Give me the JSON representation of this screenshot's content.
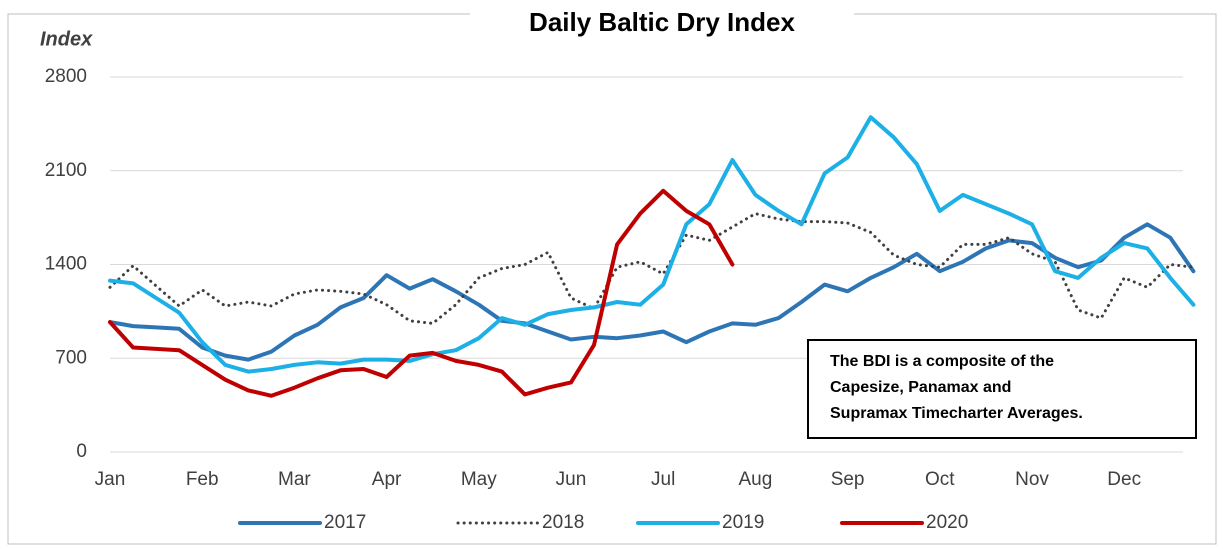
{
  "chart_data": {
    "type": "line",
    "title": "Daily Baltic Dry Index",
    "y_label": "Index",
    "annotation": [
      "The BDI is a composite of the",
      "Capesize, Panamax and",
      "Supramax Timecharter Averages."
    ],
    "x": [
      0,
      0.25,
      0.5,
      0.75,
      1,
      1.25,
      1.5,
      1.75,
      2,
      2.25,
      2.5,
      2.75,
      3,
      3.25,
      3.5,
      3.75,
      4,
      4.25,
      4.5,
      4.75,
      5,
      5.25,
      5.5,
      5.75,
      6,
      6.25,
      6.5,
      6.75,
      7,
      7.25,
      7.5,
      7.75,
      8,
      8.25,
      8.5,
      8.75,
      9,
      9.25,
      9.5,
      9.75,
      10,
      10.25,
      10.5,
      10.75,
      11,
      11.25,
      11.5,
      11.75
    ],
    "xlim": [
      0,
      11.75
    ],
    "xticks": [
      {
        "value": 0,
        "label": "Jan"
      },
      {
        "value": 1,
        "label": "Feb"
      },
      {
        "value": 2,
        "label": "Mar"
      },
      {
        "value": 3,
        "label": "Apr"
      },
      {
        "value": 4,
        "label": "May"
      },
      {
        "value": 5,
        "label": "Jun"
      },
      {
        "value": 6,
        "label": "Jul"
      },
      {
        "value": 7,
        "label": "Aug"
      },
      {
        "value": 8,
        "label": "Sep"
      },
      {
        "value": 9,
        "label": "Oct"
      },
      {
        "value": 10,
        "label": "Nov"
      },
      {
        "value": 11,
        "label": "Dec"
      }
    ],
    "ylim": [
      0,
      2800
    ],
    "yticks": [
      0,
      700,
      1400,
      2100,
      2800
    ],
    "grid": true,
    "legend": "bottom",
    "series": [
      {
        "name": "2017",
        "color": "#2e75b6",
        "style": "solid",
        "values": [
          970,
          940,
          930,
          920,
          780,
          720,
          690,
          750,
          870,
          950,
          1080,
          1150,
          1320,
          1220,
          1290,
          1200,
          1100,
          980,
          960,
          900,
          840,
          860,
          850,
          870,
          900,
          820,
          900,
          960,
          950,
          1000,
          1120,
          1250,
          1200,
          1300,
          1380,
          1480,
          1350,
          1420,
          1520,
          1580,
          1560,
          1450,
          1380,
          1430,
          1600,
          1700,
          1600,
          1350
        ]
      },
      {
        "name": "2018",
        "color": "#404040",
        "style": "dotted",
        "values": [
          1230,
          1390,
          1240,
          1090,
          1210,
          1090,
          1120,
          1090,
          1180,
          1210,
          1200,
          1180,
          1100,
          980,
          960,
          1100,
          1300,
          1370,
          1400,
          1490,
          1150,
          1070,
          1380,
          1420,
          1330,
          1620,
          1580,
          1680,
          1780,
          1740,
          1720,
          1720,
          1710,
          1640,
          1470,
          1400,
          1380,
          1550,
          1550,
          1600,
          1480,
          1420,
          1060,
          1000,
          1300,
          1230,
          1400,
          1380
        ]
      },
      {
        "name": "2019",
        "color": "#1cb0e6",
        "style": "solid",
        "values": [
          1280,
          1260,
          1150,
          1040,
          820,
          650,
          600,
          620,
          650,
          670,
          660,
          690,
          690,
          680,
          730,
          760,
          850,
          1000,
          950,
          1030,
          1060,
          1080,
          1120,
          1100,
          1250,
          1700,
          1850,
          2180,
          1920,
          1800,
          1700,
          2080,
          2200,
          2500,
          2350,
          2150,
          1800,
          1920,
          1850,
          1780,
          1700,
          1350,
          1300,
          1450,
          1560,
          1520,
          1300,
          1100
        ]
      },
      {
        "name": "2020",
        "color": "#c00000",
        "style": "solid",
        "values": [
          970,
          780,
          770,
          760,
          650,
          540,
          460,
          420,
          480,
          550,
          610,
          620,
          560,
          720,
          740,
          680,
          650,
          600,
          430,
          480,
          520,
          800,
          1550,
          1780,
          1950,
          1800,
          1700,
          1400,
          null,
          null,
          null,
          null,
          null,
          null,
          null,
          null,
          null,
          null,
          null,
          null,
          null,
          null,
          null,
          null,
          null,
          null,
          null,
          null
        ]
      }
    ]
  }
}
